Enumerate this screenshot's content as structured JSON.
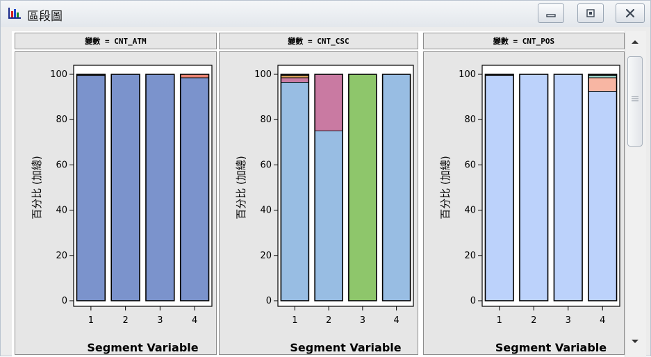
{
  "window": {
    "title": "區段圖",
    "icon": "bar-chart-icon",
    "buttons": [
      "minimize-icon",
      "maximize-icon",
      "close-icon"
    ]
  },
  "scrollbar": {
    "up_icon": "arrow-up-icon",
    "down_icon": "arrow-down-icon",
    "grip_icon": "grip-icon"
  },
  "chart_data": [
    {
      "type": "bar",
      "stacked": true,
      "title": "變數 = CNT_ATM",
      "xlabel": "Segment Variable",
      "ylabel": "百分比 (加總)",
      "categories": [
        "1",
        "2",
        "3",
        "4"
      ],
      "ylim": [
        0,
        100
      ],
      "yticks": [
        0,
        20,
        40,
        60,
        80,
        100
      ],
      "grid": false,
      "series": [
        {
          "color": "#7b93cc",
          "values": [
            99.5,
            100,
            100,
            98.5
          ]
        },
        {
          "color": "#e88373",
          "values": [
            0,
            0,
            0,
            1.5
          ]
        },
        {
          "color": "#222222",
          "values": [
            0.5,
            0,
            0,
            0
          ]
        }
      ]
    },
    {
      "type": "bar",
      "stacked": true,
      "title": "變數 = CNT_CSC",
      "xlabel": "Segment Variable",
      "ylabel": "百分比 (加總)",
      "categories": [
        "1",
        "2",
        "3",
        "4"
      ],
      "ylim": [
        0,
        100
      ],
      "yticks": [
        0,
        20,
        40,
        60,
        80,
        100
      ],
      "grid": false,
      "series": [
        {
          "color": "#98bde3",
          "values": [
            96.5,
            75,
            0,
            100
          ]
        },
        {
          "color": "#c97aa2",
          "values": [
            2,
            25,
            0,
            0
          ]
        },
        {
          "color": "#8ec66b",
          "values": [
            0,
            0,
            100,
            0
          ]
        },
        {
          "color": "#d9a25a",
          "values": [
            1,
            0,
            0,
            0
          ]
        },
        {
          "color": "#222222",
          "values": [
            0.5,
            0,
            0,
            0
          ]
        }
      ]
    },
    {
      "type": "bar",
      "stacked": true,
      "title": "變數 = CNT_POS",
      "xlabel": "Segment Variable",
      "ylabel": "百分比 (加總)",
      "categories": [
        "1",
        "2",
        "3",
        "4"
      ],
      "ylim": [
        0,
        100
      ],
      "yticks": [
        0,
        20,
        40,
        60,
        80,
        100
      ],
      "grid": false,
      "series": [
        {
          "color": "#bcd2fb",
          "values": [
            99.5,
            100,
            100,
            92.5
          ]
        },
        {
          "color": "#f8b6a3",
          "values": [
            0,
            0,
            0,
            6
          ]
        },
        {
          "color": "#9ed6cc",
          "values": [
            0,
            0,
            0,
            1
          ]
        },
        {
          "color": "#222222",
          "values": [
            0.5,
            0,
            0,
            0.5
          ]
        }
      ]
    }
  ]
}
